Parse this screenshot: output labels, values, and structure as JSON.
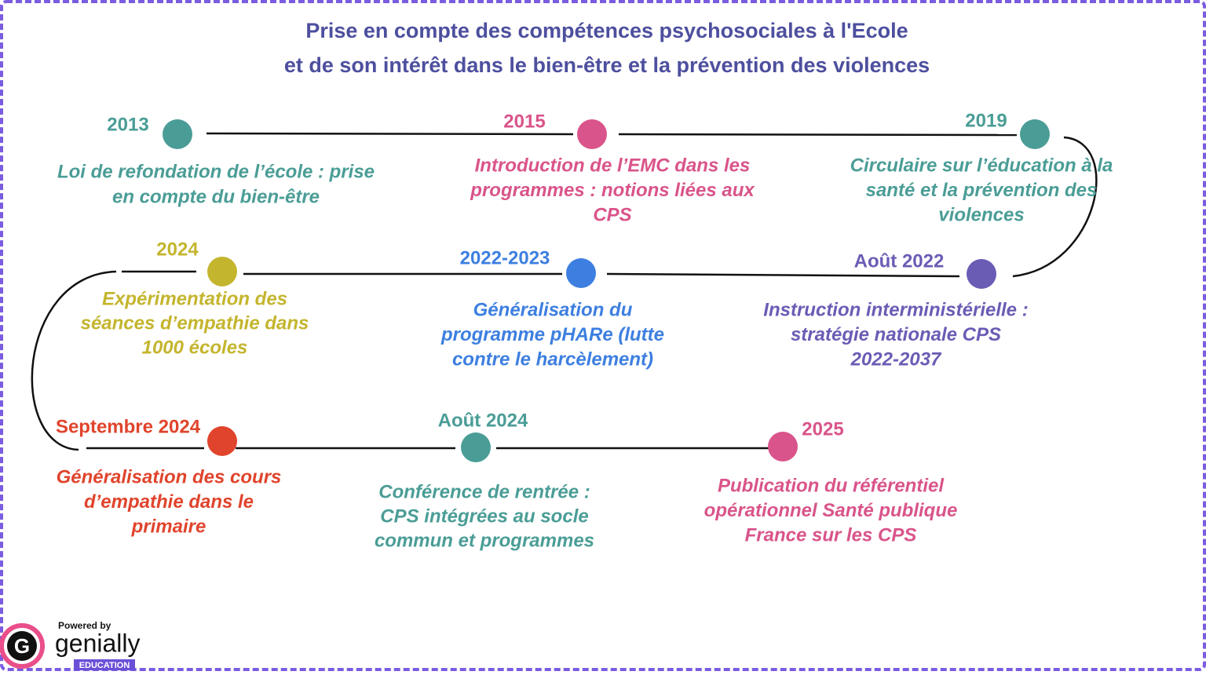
{
  "title": {
    "lines": [
      "Prise en compte des compétences psychosociales à l'Ecole",
      "et de son intérêt dans le bien-être et la prévention des violences"
    ]
  },
  "events": [
    {
      "date": "2013",
      "color": "#4a9d96",
      "text": [
        "Loi de refondation de l’école : prise",
        "en compte du bien-être"
      ]
    },
    {
      "date": "2015",
      "color": "#d9548a",
      "text": [
        "Introduction de l’EMC dans les",
        "programmes : notions liées aux",
        "CPS"
      ]
    },
    {
      "date": "2019",
      "color": "#4a9d96",
      "text": [
        "Circulaire sur l’éducation   à la",
        "santé et la prévention des",
        "violences"
      ]
    },
    {
      "date": "Août 2022",
      "color": "#6a5cb5",
      "text": [
        "Instruction interministérielle :",
        "stratégie nationale CPS",
        "2022-2037"
      ]
    },
    {
      "date": "2022-2023",
      "color": "#3d7fe0",
      "text": [
        "Généralisation du",
        "programme pHARe (lutte",
        "contre le harcèlement)"
      ]
    },
    {
      "date": "2024",
      "color": "#c4b52e",
      "text": [
        "Expérimentation des",
        "séances d’empathie dans",
        "1000 écoles"
      ]
    },
    {
      "date": "Septembre 2024",
      "color": "#e0442c",
      "text": [
        "Généralisation des cours",
        "d’empathie dans le",
        "primaire"
      ]
    },
    {
      "date": "Août 2024",
      "color": "#4a9d96",
      "text": [
        "Conférence de rentrée :",
        "CPS intégrées au socle",
        "commun et programmes"
      ]
    },
    {
      "date": "2025",
      "color": "#d9548a",
      "text": [
        "Publication du référentiel",
        "opérationnel Santé publique",
        "France sur les CPS"
      ]
    }
  ],
  "branding": {
    "powered": "Powered by",
    "name": "genially",
    "edition": "EDUCATION"
  }
}
